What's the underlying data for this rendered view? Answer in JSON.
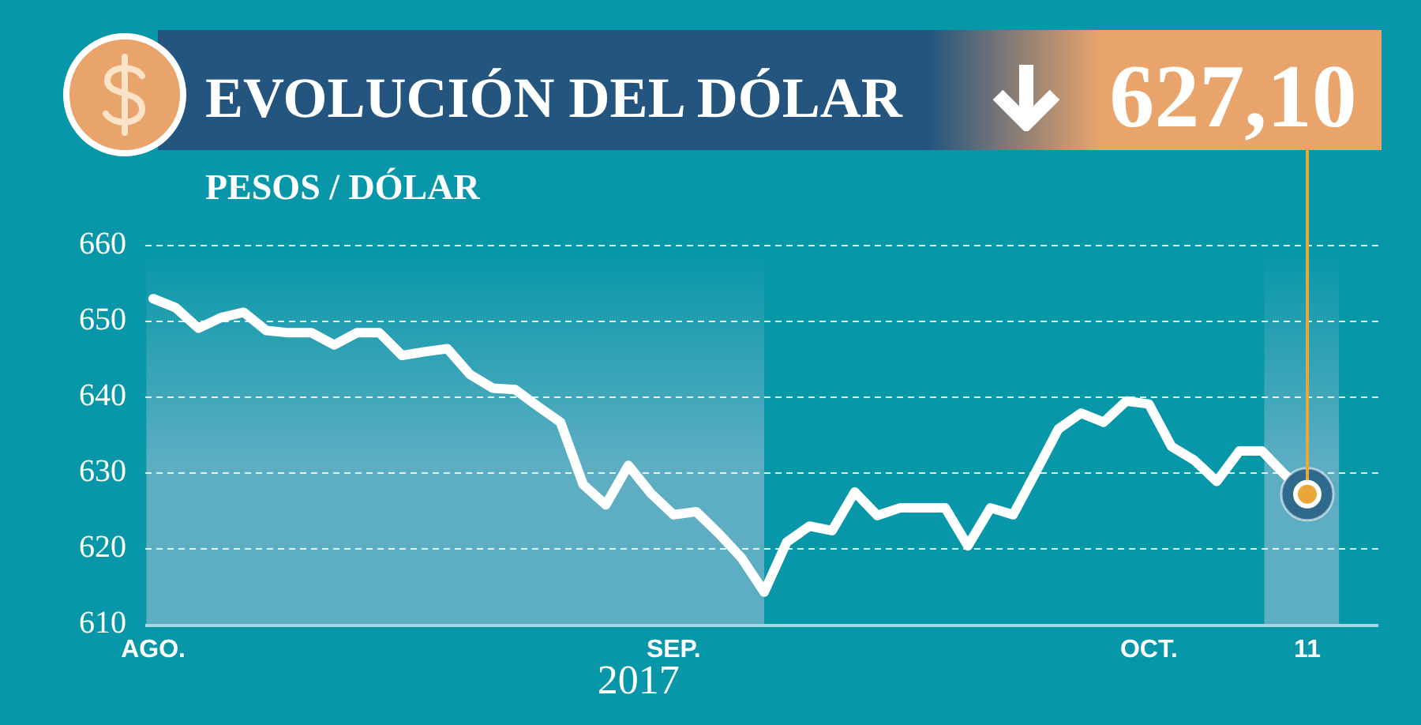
{
  "chart_data": {
    "type": "line",
    "title": "EVOLUCIÓN DEL DÓLAR",
    "ylabel": "PESOS / DÓLAR",
    "xlabel": "2017",
    "categories": [
      "AGO.",
      null,
      null,
      null,
      null,
      null,
      null,
      null,
      null,
      null,
      null,
      null,
      null,
      null,
      null,
      null,
      null,
      null,
      null,
      null,
      null,
      null,
      null,
      "SEP.",
      null,
      null,
      null,
      null,
      null,
      null,
      null,
      null,
      null,
      null,
      null,
      null,
      null,
      null,
      null,
      null,
      null,
      null,
      null,
      null,
      "OCT.",
      null,
      null,
      null,
      null,
      null,
      null,
      "11"
    ],
    "series": [
      {
        "color": "#ffffff",
        "values": [
          652.9,
          651.7,
          649.0,
          650.4,
          651.1,
          648.7,
          648.4,
          648.4,
          646.8,
          648.4,
          648.4,
          645.4,
          645.9,
          646.3,
          642.9,
          641.1,
          640.9,
          638.7,
          636.6,
          628.4,
          625.7,
          630.9,
          627.2,
          624.4,
          624.8,
          621.9,
          618.7,
          614.2,
          620.8,
          622.9,
          622.3,
          627.4,
          624.3,
          625.3,
          625.3,
          625.3,
          620.3,
          625.3,
          624.4,
          630.0,
          635.7,
          637.8,
          636.6,
          639.4,
          639.0,
          633.4,
          631.6,
          628.8,
          632.8,
          632.8,
          629.7,
          627.1
        ]
      }
    ],
    "ylim": [
      610,
      660
    ],
    "yticks": [
      610,
      620,
      630,
      640,
      650,
      660
    ],
    "grid": "y",
    "annotations": [
      {
        "text": "627,10",
        "x": "11",
        "y": 627.1
      }
    ]
  }
}
